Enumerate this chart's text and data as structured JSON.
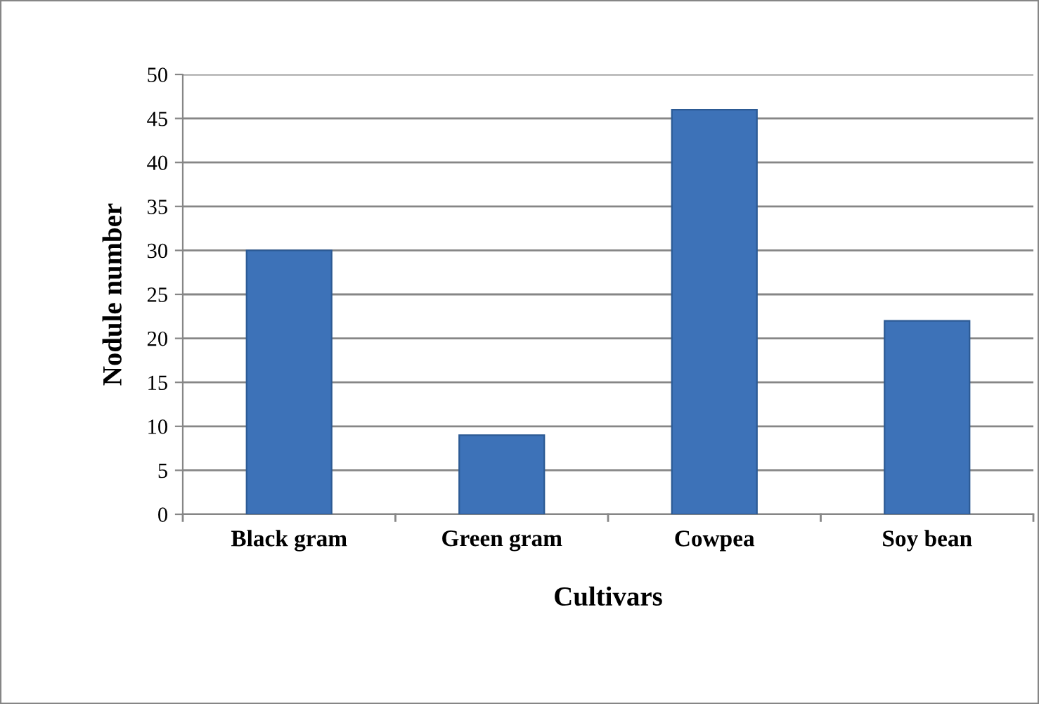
{
  "chart_data": {
    "type": "bar",
    "xlabel": "Cultivars",
    "ylabel": "Nodule number",
    "categories": [
      "Black gram",
      "Green gram",
      "Cowpea",
      "Soy bean"
    ],
    "values": [
      30,
      9,
      46,
      22
    ],
    "color": "#3d72b8",
    "ylim": [
      0,
      50
    ],
    "yticks": [
      0,
      5,
      10,
      15,
      20,
      25,
      30,
      35,
      40,
      45,
      50
    ],
    "grid": "y",
    "legend": false
  }
}
